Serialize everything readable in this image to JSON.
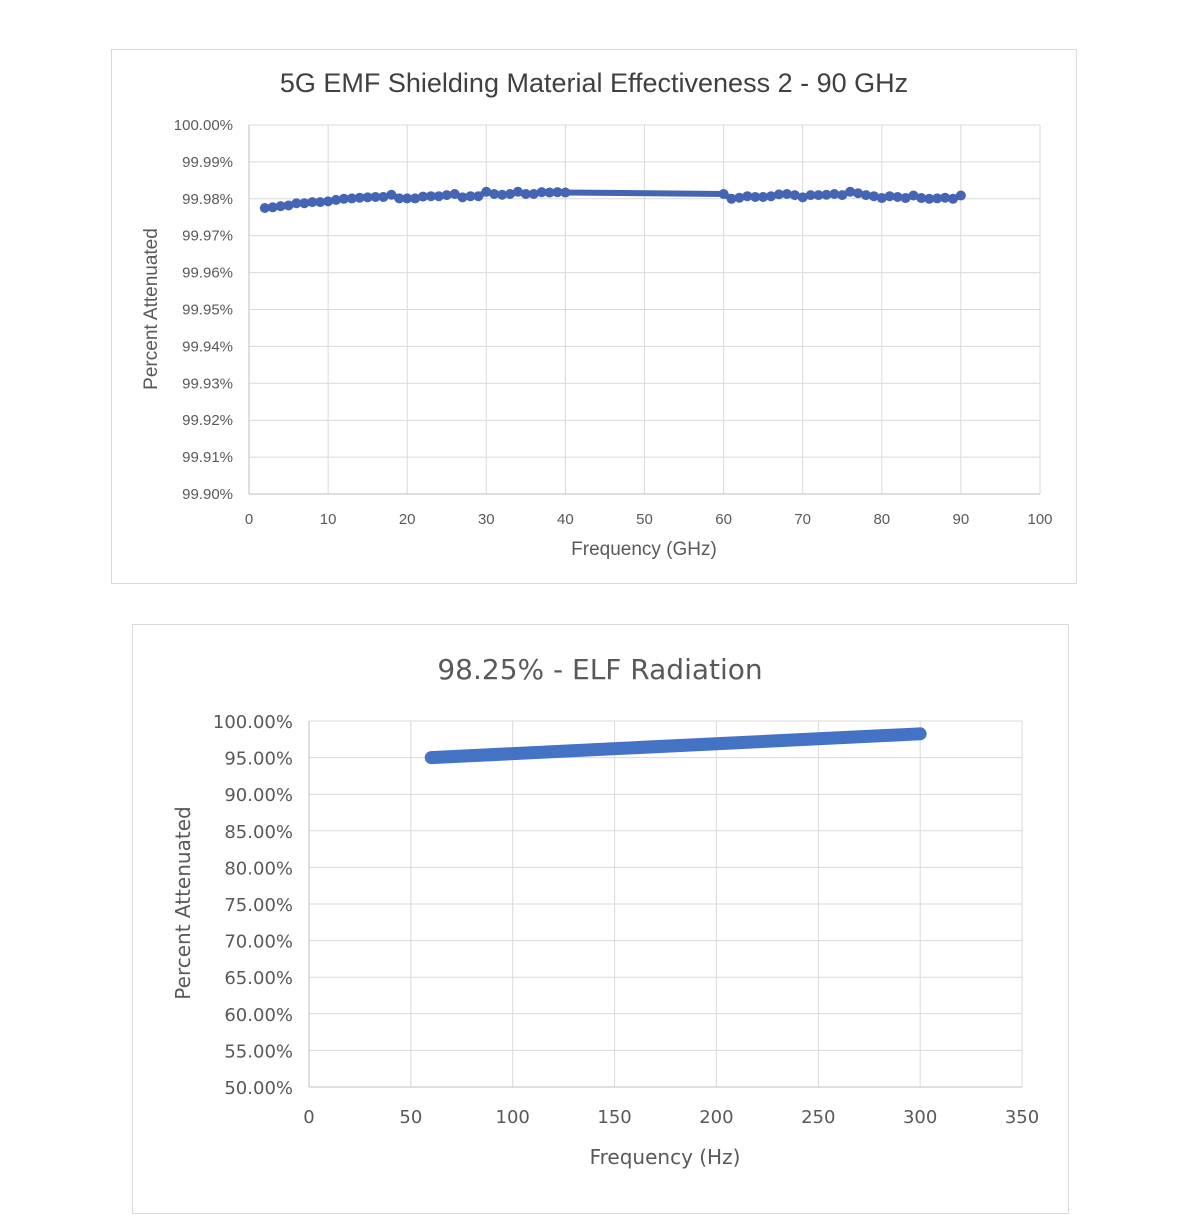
{
  "chart_data": [
    {
      "type": "line",
      "title": "5G EMF Shielding Material Effectiveness 2 - 90 GHz",
      "xlabel": "Frequency (GHz)",
      "ylabel": "Percent Attenuated",
      "xlim": [
        0,
        100
      ],
      "ylim": [
        99.9,
        100.0
      ],
      "x_ticks": [
        0,
        10,
        20,
        30,
        40,
        50,
        60,
        70,
        80,
        90,
        100
      ],
      "x_tick_labels": [
        "0",
        "10",
        "20",
        "30",
        "40",
        "50",
        "60",
        "70",
        "80",
        "90",
        "100"
      ],
      "y_ticks": [
        99.9,
        99.91,
        99.92,
        99.93,
        99.94,
        99.95,
        99.96,
        99.97,
        99.98,
        99.99,
        100.0
      ],
      "y_tick_labels": [
        "99.90%",
        "99.91%",
        "99.92%",
        "99.93%",
        "99.94%",
        "99.95%",
        "99.96%",
        "99.97%",
        "99.98%",
        "99.99%",
        "100.00%"
      ],
      "grid": true,
      "legend": "none",
      "color": "#4565b4",
      "markers": true,
      "series": [
        {
          "x": [
            2,
            3,
            4,
            5,
            6,
            7,
            8,
            9,
            10,
            11,
            12,
            13,
            14,
            15,
            16,
            17,
            18,
            19,
            20,
            21,
            22,
            23,
            24,
            25,
            26,
            27,
            28,
            29,
            30,
            31,
            32,
            33,
            34,
            35,
            36,
            37,
            38,
            39,
            40,
            60,
            61,
            62,
            63,
            64,
            65,
            66,
            67,
            68,
            69,
            70,
            71,
            72,
            73,
            74,
            75,
            76,
            77,
            78,
            79,
            80,
            81,
            82,
            83,
            84,
            85,
            86,
            87,
            88,
            89,
            90
          ],
          "values": [
            99.9775,
            99.9777,
            99.978,
            99.9782,
            99.9788,
            99.9788,
            99.9791,
            99.9791,
            99.9793,
            99.9797,
            99.98,
            99.9801,
            99.9803,
            99.9804,
            99.9805,
            99.9805,
            99.9811,
            99.9801,
            99.9801,
            99.9801,
            99.9806,
            99.9807,
            99.9807,
            99.981,
            99.9813,
            99.9804,
            99.9807,
            99.9807,
            99.9819,
            99.9813,
            99.9811,
            99.9813,
            99.9819,
            99.9813,
            99.9813,
            99.9818,
            99.9817,
            99.9818,
            99.9817,
            99.9813,
            99.98,
            99.9803,
            99.9807,
            99.9805,
            99.9805,
            99.9807,
            99.9812,
            99.9813,
            99.981,
            99.9804,
            99.981,
            99.981,
            99.9811,
            99.9813,
            99.981,
            99.9819,
            99.9815,
            99.981,
            99.9807,
            99.9802,
            99.9807,
            99.9805,
            99.9802,
            99.9809,
            99.9802,
            99.98,
            99.9801,
            99.9803,
            99.98,
            99.9809
          ]
        }
      ]
    },
    {
      "type": "line",
      "title": "98.25% - ELF Radiation",
      "xlabel": "Frequency (Hz)",
      "ylabel": "Percent Attenuated",
      "xlim": [
        0,
        350
      ],
      "ylim": [
        50.0,
        100.0
      ],
      "x_ticks": [
        0,
        50,
        100,
        150,
        200,
        250,
        300,
        350
      ],
      "x_tick_labels": [
        "0",
        "50",
        "100",
        "150",
        "200",
        "250",
        "300",
        "350"
      ],
      "y_ticks": [
        50,
        55,
        60,
        65,
        70,
        75,
        80,
        85,
        90,
        95,
        100
      ],
      "y_tick_labels": [
        "50.00%",
        "55.00%",
        "60.00%",
        "65.00%",
        "70.00%",
        "75.00%",
        "80.00%",
        "85.00%",
        "90.00%",
        "95.00%",
        "100.00%"
      ],
      "grid": true,
      "legend": "none",
      "color": "#4472c4",
      "markers": false,
      "series": [
        {
          "x": [
            60,
            300
          ],
          "values": [
            95.0,
            98.25
          ]
        }
      ]
    }
  ]
}
